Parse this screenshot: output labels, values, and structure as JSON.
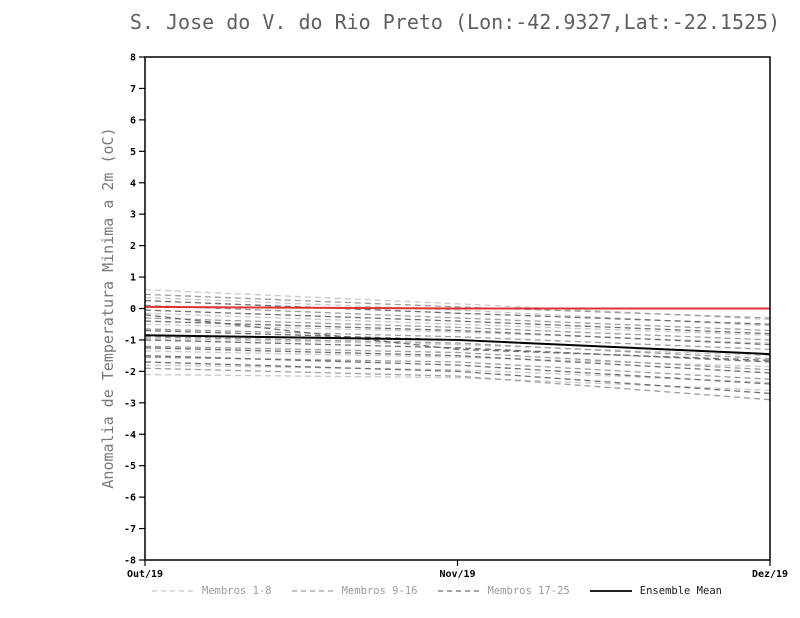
{
  "chart_data": {
    "type": "line",
    "title": "S. Jose do V. do Rio Preto (Lon:-42.9327,Lat:-22.1525)",
    "ylabel": "Anomalia de Temperatura Minima a 2m (oC)",
    "xlabel": "",
    "x_tick_labels": [
      "Out/19",
      "Nov/19",
      "Dez/19"
    ],
    "ylim": [
      -8,
      8
    ],
    "ytick_step": 1,
    "grid": false,
    "legend_position": "bottom",
    "series_groups": [
      {
        "name": "Membros 1-8",
        "color": "#c8c8c8",
        "style": "dashed",
        "members": [
          [
            0.6,
            0.15,
            -0.35
          ],
          [
            0.35,
            -0.05,
            -0.55
          ],
          [
            -0.15,
            -0.5,
            -0.85
          ],
          [
            -0.5,
            -0.75,
            -1.1
          ],
          [
            -0.95,
            -1.15,
            -1.5
          ],
          [
            -1.35,
            -1.55,
            -1.85
          ],
          [
            -1.8,
            -1.95,
            -2.35
          ],
          [
            -2.1,
            -2.2,
            -2.6
          ]
        ]
      },
      {
        "name": "Membros 9-16",
        "color": "#9c9c9c",
        "style": "dashed",
        "members": [
          [
            0.45,
            0.05,
            -0.3
          ],
          [
            0.1,
            -0.3,
            -0.7
          ],
          [
            -0.3,
            -0.6,
            -1.0
          ],
          [
            -0.65,
            -0.9,
            -1.3
          ],
          [
            -0.9,
            -1.1,
            -1.6
          ],
          [
            -1.2,
            -1.4,
            -1.95
          ],
          [
            -1.55,
            -1.7,
            -2.25
          ],
          [
            -1.9,
            -2.15,
            -2.9
          ]
        ]
      },
      {
        "name": "Membros 17-25",
        "color": "#6e6e6e",
        "style": "dashed",
        "members": [
          [
            0.25,
            -0.15,
            -0.5
          ],
          [
            -0.05,
            -0.4,
            -0.8
          ],
          [
            -0.4,
            -0.7,
            -1.15
          ],
          [
            -0.7,
            -1.0,
            -1.45
          ],
          [
            -1.0,
            -1.25,
            -1.7
          ],
          [
            -1.25,
            -1.5,
            -2.05
          ],
          [
            -1.5,
            -1.8,
            -2.4
          ],
          [
            -1.7,
            -2.0,
            -2.7
          ],
          [
            -0.2,
            -1.3,
            -1.65
          ]
        ]
      }
    ],
    "ensemble_mean": {
      "name": "Ensemble Mean",
      "color": "#000000",
      "style": "solid",
      "values": [
        -0.85,
        -1.0,
        -1.45
      ]
    },
    "reference_line": {
      "name": "zero-anomaly-reference",
      "color": "#e03131",
      "style": "solid",
      "values": [
        0.05,
        0.0,
        0.0
      ]
    }
  },
  "legend": [
    {
      "label": "Membros 1-8",
      "line_color": "#c8c8c8",
      "text_color": "#9a9a9a",
      "style": "dashed"
    },
    {
      "label": "Membros 9-16",
      "line_color": "#9c9c9c",
      "text_color": "#9a9a9a",
      "style": "dashed"
    },
    {
      "label": "Membros 17-25",
      "line_color": "#6e6e6e",
      "text_color": "#9a9a9a",
      "style": "dashed"
    },
    {
      "label": "Ensemble Mean",
      "line_color": "#000000",
      "text_color": "#1a1a1a",
      "style": "solid"
    }
  ]
}
